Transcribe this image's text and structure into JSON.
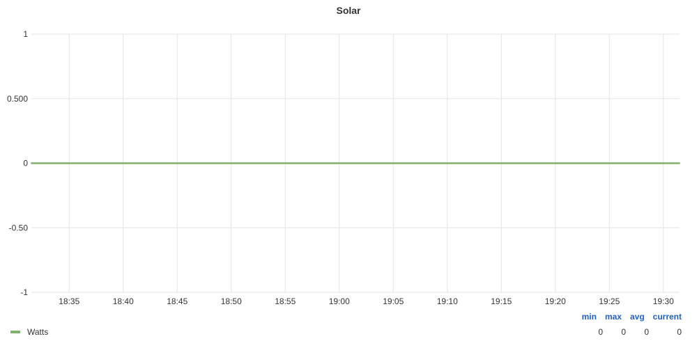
{
  "chart_data": {
    "type": "line",
    "title": "Solar",
    "xlabel": "",
    "ylabel": "",
    "x_ticks": [
      "18:35",
      "18:40",
      "18:45",
      "18:50",
      "18:55",
      "19:00",
      "19:05",
      "19:10",
      "19:15",
      "19:20",
      "19:25",
      "19:30"
    ],
    "y_ticks": [
      "1",
      "0.500",
      "0",
      "-0.50",
      "-1"
    ],
    "ylim": [
      -1,
      1
    ],
    "x_range": [
      "18:31:30",
      "19:31:30"
    ],
    "grid": true,
    "legend_position": "bottom",
    "series": [
      {
        "name": "Watts",
        "color": "#7eb26d",
        "x": [
          "18:31:30",
          "18:35",
          "18:40",
          "18:45",
          "18:50",
          "18:55",
          "19:00",
          "19:05",
          "19:10",
          "19:15",
          "19:20",
          "19:25",
          "19:30",
          "19:31:30"
        ],
        "values": [
          0,
          0,
          0,
          0,
          0,
          0,
          0,
          0,
          0,
          0,
          0,
          0,
          0,
          0
        ]
      }
    ],
    "legend_table": {
      "headers": [
        "min",
        "max",
        "avg",
        "current"
      ],
      "values": [
        "0",
        "0",
        "0",
        "0"
      ]
    }
  }
}
